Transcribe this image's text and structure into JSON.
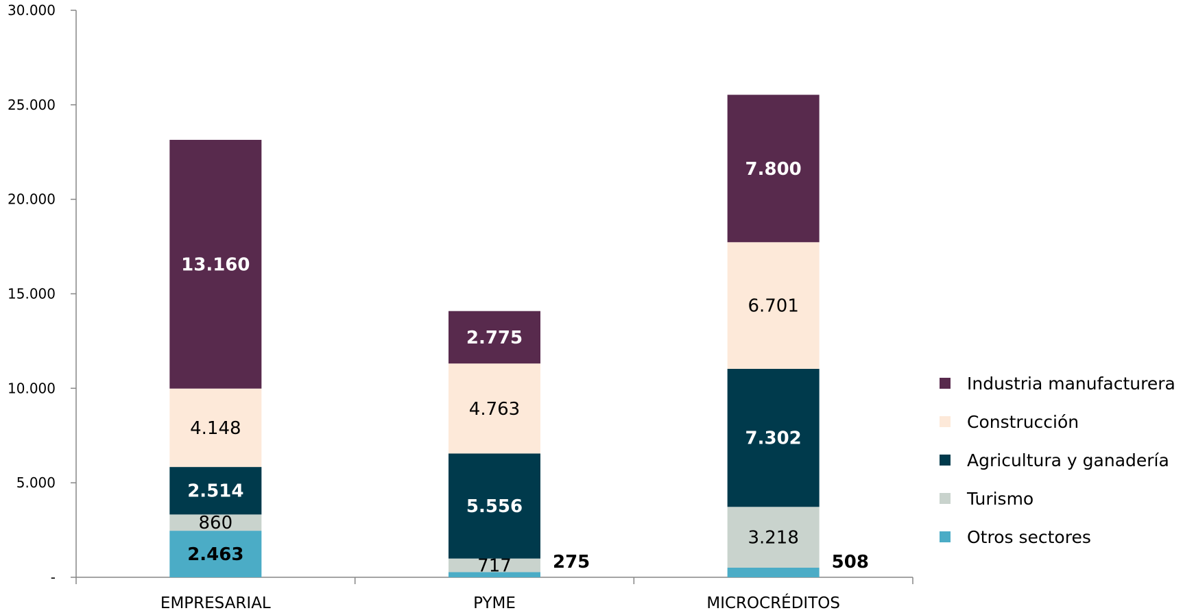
{
  "chart_data": {
    "type": "bar",
    "stacked": true,
    "categories": [
      "EMPRESARIAL",
      "PYME",
      "MICROCRÉDITOS"
    ],
    "series": [
      {
        "name": "Otros sectores",
        "values": [
          2463,
          275,
          508
        ],
        "labels": [
          "2.463",
          "275",
          "508"
        ],
        "color": "#4bacc6",
        "label_color": "#000000",
        "label_bold": true
      },
      {
        "name": "Turismo",
        "values": [
          860,
          717,
          3218
        ],
        "labels": [
          "860",
          "717",
          "3.218"
        ],
        "color": "#c9d3cd",
        "label_color": "#000000",
        "label_bold": false
      },
      {
        "name": "Agricultura y ganadería",
        "values": [
          2514,
          5556,
          7302
        ],
        "labels": [
          "2.514",
          "5.556",
          "7.302"
        ],
        "color": "#003a4c",
        "label_color": "#ffffff",
        "label_bold": true
      },
      {
        "name": "Construcción",
        "values": [
          4148,
          4763,
          6701
        ],
        "labels": [
          "4.148",
          "4.763",
          "6.701"
        ],
        "color": "#fde9d9",
        "label_color": "#000000",
        "label_bold": false
      },
      {
        "name": "Industria manufacturera",
        "values": [
          13160,
          2775,
          7800
        ],
        "labels": [
          "13.160",
          "2.775",
          "7.800"
        ],
        "color": "#582a4d",
        "label_color": "#ffffff",
        "label_bold": true
      }
    ],
    "outside_labels": [
      {
        "category": "PYME",
        "series": "Otros sectores"
      },
      {
        "category": "MICROCRÉDITOS",
        "series": "Otros sectores"
      }
    ],
    "ylim": [
      0,
      30000
    ],
    "yticks": [
      0,
      5000,
      10000,
      15000,
      20000,
      25000,
      30000
    ],
    "ytick_labels": [
      "-",
      "5.000",
      "10.000",
      "15.000",
      "20.000",
      "25.000",
      "30.000"
    ],
    "grid": false,
    "legend_position": "right",
    "legend_order": [
      "Industria manufacturera",
      "Construcción",
      "Agricultura y ganadería",
      "Turismo",
      "Otros sectores"
    ],
    "title": "",
    "xlabel": "",
    "ylabel": ""
  }
}
